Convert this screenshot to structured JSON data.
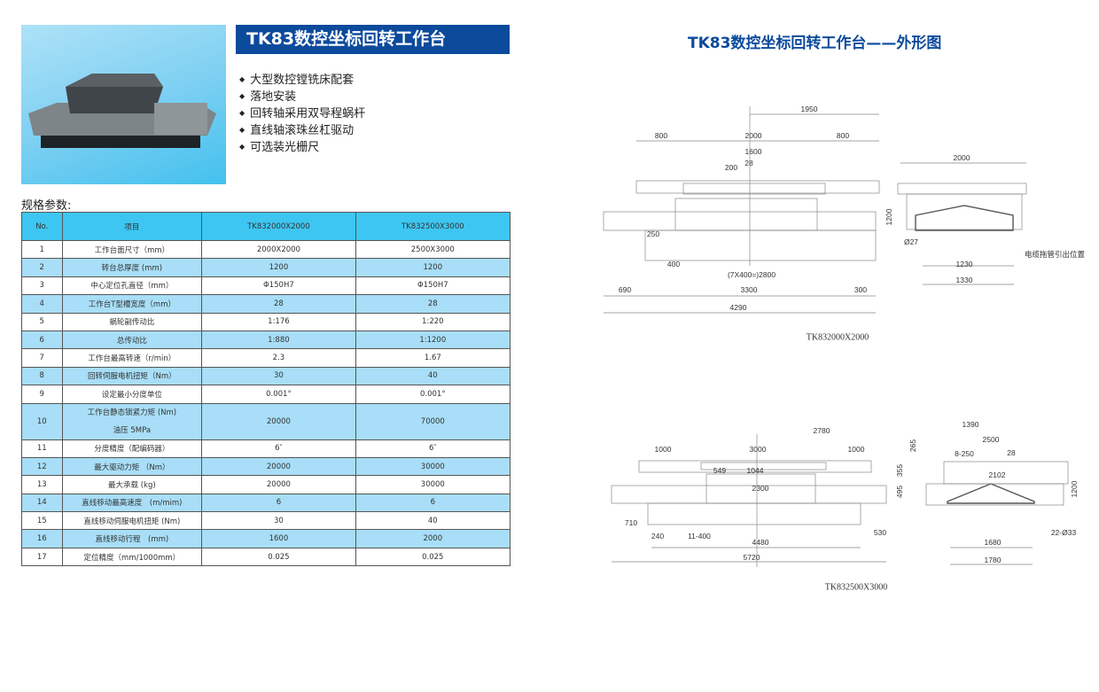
{
  "product_title": "TK83数控坐标回转工作台",
  "features": [
    "大型数控镗铣床配套",
    "落地安装",
    "回转轴采用双导程蜗杆",
    "直线轴滚珠丝杠驱动",
    "可选装光栅尺"
  ],
  "spec_label": "规格参数:",
  "table": {
    "headers": [
      "No.",
      "项目",
      "TK832000X2000",
      "TK832500X3000"
    ],
    "rows": [
      [
        "1",
        "工作台面尺寸（mm）",
        "2000X2000",
        "2500X3000"
      ],
      [
        "2",
        "转台总厚度 (mm)",
        "1200",
        "1200"
      ],
      [
        "3",
        "中心定位孔直径（mm）",
        "Φ150H7",
        "Φ150H7"
      ],
      [
        "4",
        "工作台T型槽宽度（mm）",
        "28",
        "28"
      ],
      [
        "5",
        "蜗轮副传动比",
        "1:176",
        "1:220"
      ],
      [
        "6",
        "总传动比",
        "1:880",
        "1:1200"
      ],
      [
        "7",
        "工作台最高转速（r/min）",
        "2.3",
        "1.67"
      ],
      [
        "8",
        "回转伺服电机扭矩（Nm）",
        "30",
        "40"
      ],
      [
        "9",
        "设定最小分度单位",
        "0.001°",
        "0.001°"
      ],
      [
        "10",
        "工作台静态锁紧力矩 (Nm)\n油压 5MPa",
        "20000",
        "70000"
      ],
      [
        "11",
        "分度精度（配编码器）",
        "6″",
        "6″"
      ],
      [
        "12",
        "最大驱动力矩 （Nm）",
        "20000",
        "30000"
      ],
      [
        "13",
        "最大承载 (kg)",
        "20000",
        "30000"
      ],
      [
        "14",
        "直线移动最高速度　(m/mim)",
        "6",
        "6"
      ],
      [
        "15",
        "直线移动伺服电机扭矩 (Nm)",
        "30",
        "40"
      ],
      [
        "16",
        "直线移动行程　(mm)",
        "1600",
        "2000"
      ],
      [
        "17",
        "定位精度（mm/1000mm）",
        "0.025",
        "0.025"
      ]
    ]
  },
  "drawing_title": "TK83数控坐标回转工作台——外形图",
  "drawing1": {
    "caption": "TK832000X2000",
    "dims": [
      "1950",
      "800",
      "2000",
      "800",
      "1600",
      "200",
      "28",
      "250",
      "400",
      "(7X400=)2800",
      "690",
      "3300",
      "300",
      "4290",
      "2000",
      "1200",
      "Ø27",
      "电缆拖管引出位置",
      "1230",
      "1330"
    ]
  },
  "drawing2": {
    "caption": "TK832500X3000",
    "dims": [
      "2780",
      "1000",
      "3000",
      "1000",
      "549",
      "1044",
      "2300",
      "710",
      "240",
      "11-400",
      "4480",
      "530",
      "5720",
      "1390",
      "265",
      "2500",
      "8-250",
      "28",
      "355",
      "2102",
      "495",
      "1200",
      "22-Ø33",
      "1680",
      "1780"
    ]
  },
  "colors": {
    "brand_blue": "#0c4a9c",
    "header_cyan": "#3ec6f2",
    "row_alt": "#a8def7"
  }
}
